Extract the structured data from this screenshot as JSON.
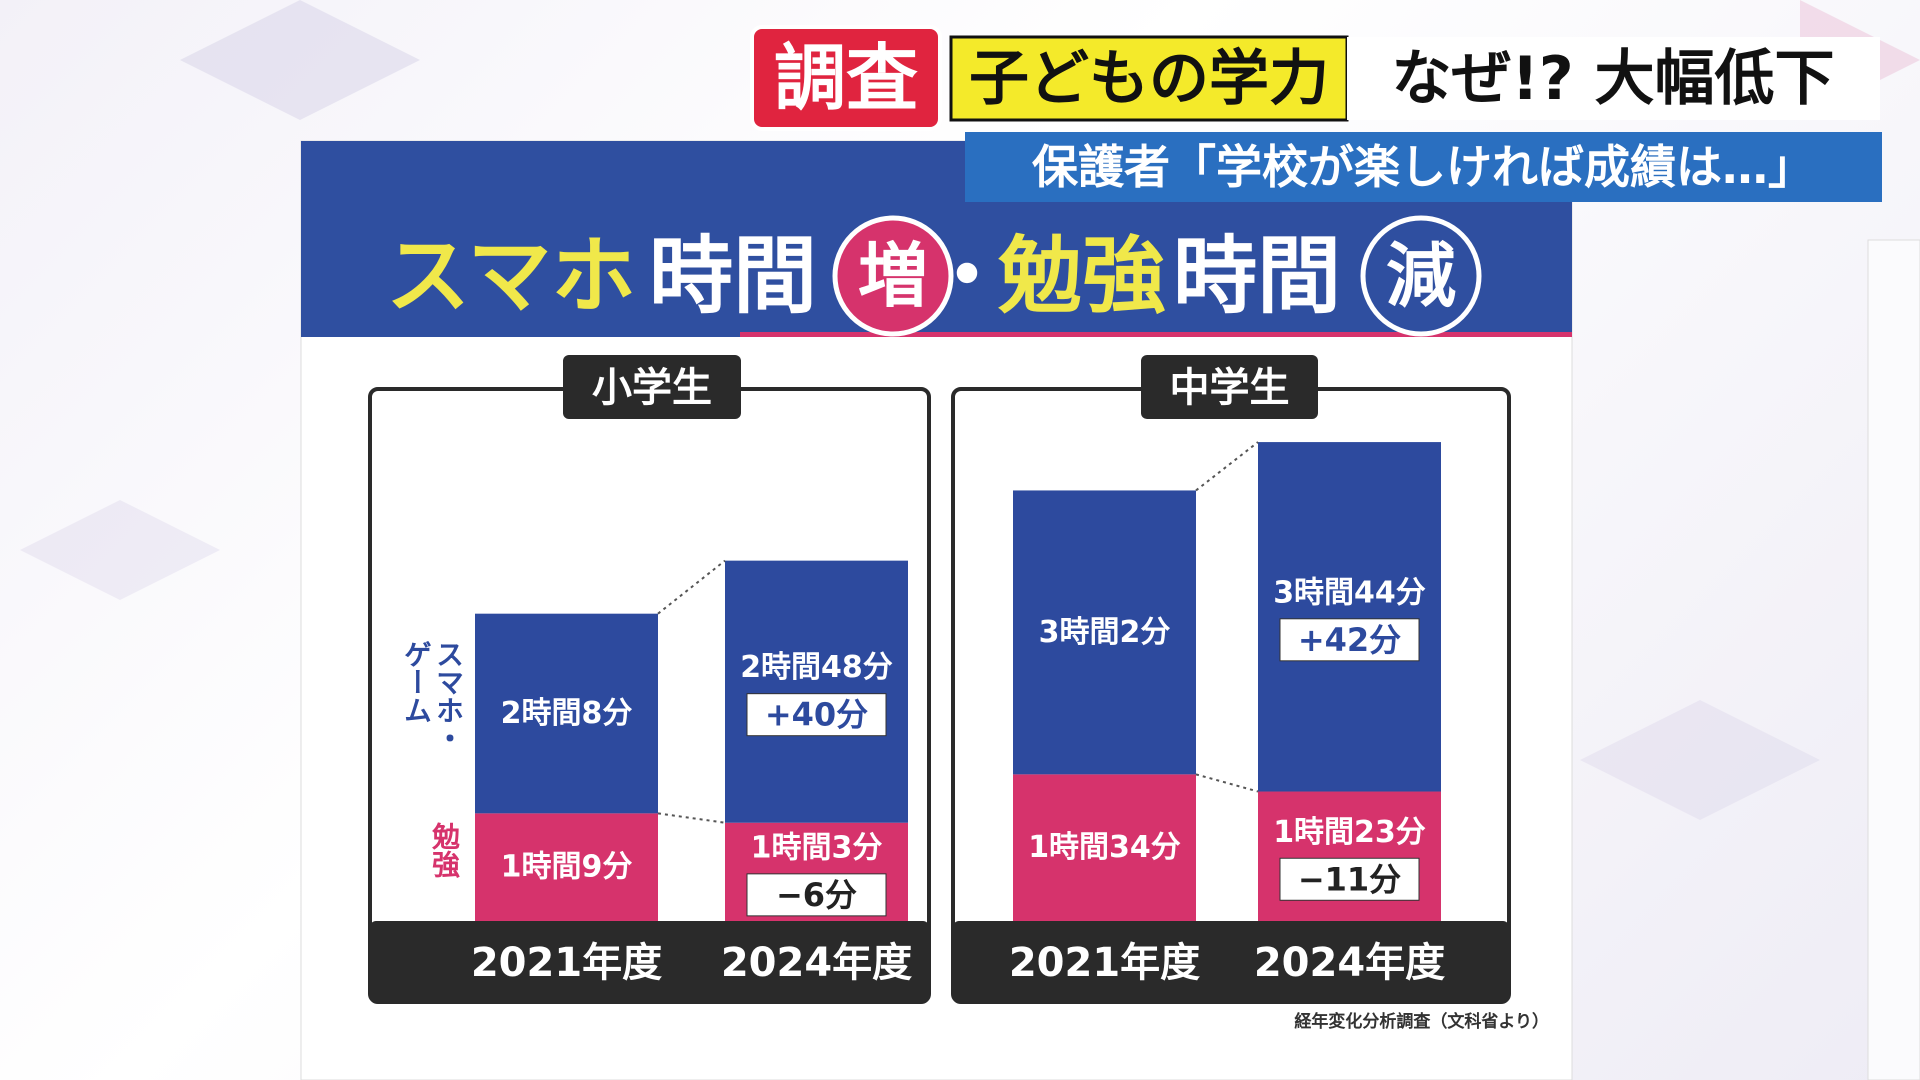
{
  "header": {
    "tag": "調査",
    "topic": "子どもの学力",
    "headline": "なぜ!? 大幅低下",
    "subtitle": "保護者「学校が楽しければ成績は…」"
  },
  "board": {
    "title_parts": [
      "スマホ",
      "時間",
      "増",
      "・",
      "勉強",
      "時間",
      "減"
    ],
    "source": "経年変化分析調査（文科省より）"
  },
  "chart_data": [
    {
      "type": "bar",
      "stacked": true,
      "title": "小学生",
      "categories": [
        "2021年度",
        "2024年度"
      ],
      "series": [
        {
          "name": "勉強",
          "color": "#d6336c",
          "values": [
            69,
            63
          ],
          "value_labels": [
            "1時間9分",
            "1時間3分"
          ],
          "change_label": "−6分"
        },
        {
          "name": "スマホ・ゲーム",
          "color": "#2d4a9e",
          "values": [
            128,
            168
          ],
          "value_labels": [
            "2時間8分",
            "2時間48分"
          ],
          "change_label": "+40分"
        }
      ]
    },
    {
      "type": "bar",
      "stacked": true,
      "title": "中学生",
      "categories": [
        "2021年度",
        "2024年度"
      ],
      "series": [
        {
          "color": "#d6336c",
          "values": [
            94,
            83
          ],
          "value_labels": [
            "1時間34分",
            "1時間23分"
          ],
          "change_label": "−11分"
        },
        {
          "color": "#2d4a9e",
          "values": [
            182,
            224
          ],
          "value_labels": [
            "3時間2分",
            "3時間44分"
          ],
          "change_label": "+42分"
        }
      ]
    }
  ]
}
